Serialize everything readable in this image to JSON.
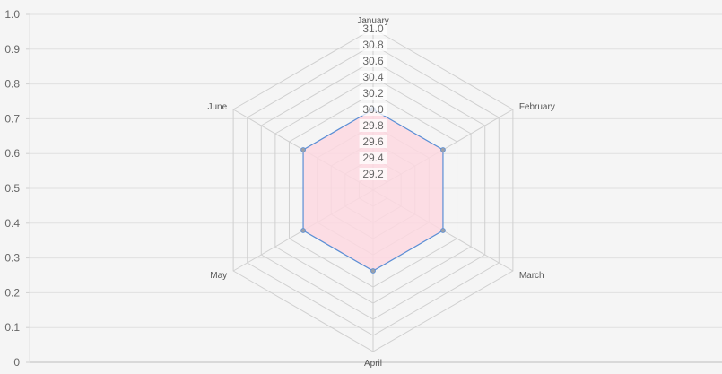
{
  "chart_data": {
    "type": "radar",
    "y_axis": {
      "range": [
        0,
        1.0
      ],
      "ticks": [
        "0",
        "0.1",
        "0.2",
        "0.3",
        "0.4",
        "0.5",
        "0.6",
        "0.7",
        "0.8",
        "0.9",
        "1.0"
      ],
      "grid": true
    },
    "r_axis": {
      "range": [
        29.0,
        31.0
      ],
      "ticks": [
        "29.2",
        "29.4",
        "29.6",
        "29.8",
        "30.0",
        "30.2",
        "30.4",
        "30.6",
        "30.8",
        "31.0"
      ]
    },
    "labels": [
      "January",
      "February",
      "March",
      "April",
      "May",
      "June"
    ],
    "series": [
      {
        "values": [
          30.0,
          30.0,
          30.0,
          30.0,
          30.0,
          30.0
        ],
        "stroke": "#5b8fd6",
        "fill": "#fdd8e0",
        "point_color": "#9aa0aa"
      }
    ],
    "grid_color": "#d0d0d0",
    "background": "#f5f5f5"
  }
}
